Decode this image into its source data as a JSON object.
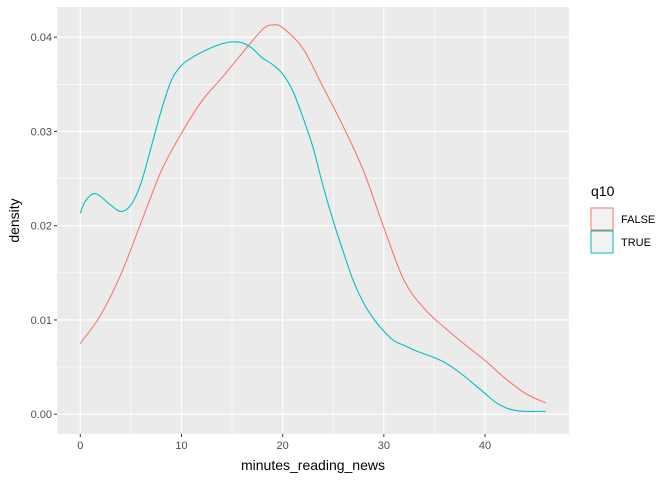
{
  "chart_data": {
    "type": "line",
    "subtype": "density",
    "xlabel": "minutes_reading_news",
    "ylabel": "density",
    "xlim": [
      -2.3,
      48.3
    ],
    "ylim": [
      -0.0021,
      0.0432
    ],
    "x_ticks": [
      0,
      10,
      20,
      30,
      40
    ],
    "x_tick_labels": [
      "0",
      "10",
      "20",
      "30",
      "40"
    ],
    "y_ticks": [
      0.0,
      0.01,
      0.02,
      0.03,
      0.04
    ],
    "y_tick_labels": [
      "0.00",
      "0.01",
      "0.02",
      "0.03",
      "0.04"
    ],
    "grid": true,
    "legend": {
      "title": "q10",
      "position": "right"
    },
    "series": [
      {
        "name": "FALSE",
        "color": "#F8766D",
        "x": [
          0,
          2,
          4,
          6,
          8,
          10,
          12,
          14,
          16,
          18,
          19,
          20,
          22,
          24,
          26,
          28,
          30,
          32,
          34,
          36,
          38,
          40,
          42,
          44,
          46
        ],
        "y": [
          0.0075,
          0.0105,
          0.0148,
          0.0203,
          0.0258,
          0.0298,
          0.0332,
          0.0357,
          0.0383,
          0.0408,
          0.0413,
          0.041,
          0.0388,
          0.0347,
          0.0305,
          0.0258,
          0.0198,
          0.0142,
          0.0112,
          0.0092,
          0.0074,
          0.0057,
          0.0038,
          0.0022,
          0.0012
        ]
      },
      {
        "name": "TRUE",
        "color": "#00BFC4",
        "x": [
          0,
          0.5,
          1.5,
          3,
          4,
          5,
          6,
          7,
          8,
          9,
          10,
          11,
          12,
          13,
          14,
          15,
          16,
          17,
          18,
          19,
          20,
          21,
          22,
          23,
          24,
          25,
          26,
          27,
          28,
          29,
          30,
          31,
          32,
          33,
          34,
          35,
          36,
          37,
          38,
          39,
          40,
          41,
          42,
          43,
          44,
          45,
          46
        ],
        "y": [
          0.0213,
          0.0226,
          0.0234,
          0.0222,
          0.0215,
          0.0222,
          0.0245,
          0.0283,
          0.0322,
          0.0354,
          0.037,
          0.0378,
          0.0384,
          0.0389,
          0.0393,
          0.0395,
          0.0394,
          0.0388,
          0.0378,
          0.0371,
          0.0361,
          0.0343,
          0.0315,
          0.0283,
          0.0242,
          0.0205,
          0.0172,
          0.0141,
          0.0118,
          0.0101,
          0.0088,
          0.0078,
          0.0073,
          0.0068,
          0.0064,
          0.006,
          0.0055,
          0.0048,
          0.004,
          0.0031,
          0.0022,
          0.0013,
          0.0007,
          0.0004,
          0.0003,
          0.0003,
          0.0003
        ]
      }
    ]
  }
}
